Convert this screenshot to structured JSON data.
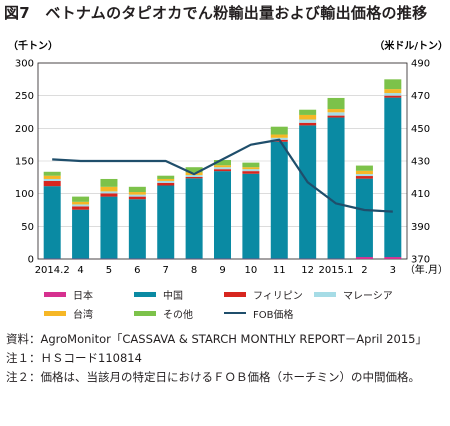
{
  "title": "図7　ベトナムのタピオカでん粉輸出量および輸出価格の推移",
  "chart_data": {
    "type": "bar",
    "stacked": true,
    "categories": [
      "2014.2",
      "4",
      "5",
      "6",
      "7",
      "8",
      "9",
      "10",
      "11",
      "12",
      "2015.1",
      "2",
      "3"
    ],
    "xunit": "（年.月）",
    "y_left_label": "（千トン）",
    "y_right_label": "（米ドル/トン）",
    "ylim_left": [
      0,
      300
    ],
    "ylim_right": [
      370,
      490
    ],
    "yticks_left": [
      "0",
      "50",
      "100",
      "150",
      "200",
      "250",
      "300"
    ],
    "yticks_right": [
      "370",
      "390",
      "410",
      "430",
      "450",
      "470",
      "490"
    ],
    "grid": true,
    "series": [
      {
        "name": "日本",
        "color": "#d6308f",
        "axis": "left",
        "values": [
          0.5,
          0.5,
          0.5,
          0.5,
          0.5,
          0.5,
          0.5,
          0.5,
          0.5,
          0.5,
          0.5,
          3,
          3
        ]
      },
      {
        "name": "中国",
        "color": "#0a8aa3",
        "axis": "left",
        "values": [
          111,
          75,
          95,
          91,
          112,
          123,
          134,
          130,
          179,
          204,
          216,
          120,
          244
        ]
      },
      {
        "name": "フィリピン",
        "color": "#d7261f",
        "axis": "left",
        "values": [
          8,
          5,
          5,
          4,
          4,
          2,
          3,
          4,
          3,
          4,
          3,
          4,
          3
        ]
      },
      {
        "name": "マレーシア",
        "color": "#a6dce6",
        "axis": "left",
        "values": [
          3,
          3,
          3,
          3,
          3,
          3,
          3,
          3,
          3,
          5,
          5,
          3,
          4
        ]
      },
      {
        "name": "台湾",
        "color": "#f6b726",
        "axis": "left",
        "values": [
          5,
          4,
          7,
          4,
          3,
          4,
          3,
          3,
          5,
          7,
          5,
          5,
          6
        ]
      },
      {
        "name": "その他",
        "color": "#7cc24a",
        "axis": "left",
        "values": [
          6,
          8,
          12,
          8,
          5,
          8,
          8,
          7,
          12,
          8,
          17,
          8,
          15
        ]
      },
      {
        "name": "FOB価格",
        "color": "#1f4e6b",
        "axis": "right",
        "type": "line",
        "values": [
          431,
          430,
          430,
          430,
          430,
          422,
          431,
          440,
          443,
          417,
          404,
          400,
          399
        ]
      }
    ],
    "legend_placement": "bottom"
  },
  "legend_rows": [
    [
      {
        "name": "日本",
        "color": "#d6308f"
      },
      {
        "name": "中国",
        "color": "#0a8aa3"
      },
      {
        "name": "フィリピン",
        "color": "#d7261f"
      },
      {
        "name": "マレーシア",
        "color": "#a6dce6"
      }
    ],
    [
      {
        "name": "台湾",
        "color": "#f6b726"
      },
      {
        "name": "その他",
        "color": "#7cc24a"
      },
      {
        "name": "FOB価格",
        "color": "#1f4e6b"
      }
    ]
  ],
  "notes": [
    {
      "label": "資料：",
      "text": "AgroMonitor「CASSAVA & STARCH MONTHLY REPORT－April 2015」"
    },
    {
      "label": "注１：",
      "text": "ＨＳコード110814"
    },
    {
      "label": "注２：",
      "text": "価格は、当該月の特定日におけるＦＯＢ価格（ホーチミン）の中間価格。"
    }
  ]
}
